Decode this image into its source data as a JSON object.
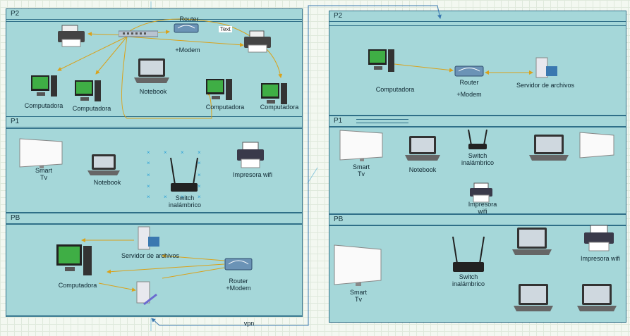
{
  "left": {
    "p2": {
      "title": "P2",
      "labels": {
        "router": "Router",
        "router2": "+Modem",
        "notebook": "Notebook",
        "comp1": "Computadora",
        "comp2": "Computadora",
        "comp3": "Computadora",
        "comp4": "Computadora",
        "text": "Text"
      }
    },
    "p1": {
      "title": "P1",
      "labels": {
        "smart1": "Smart",
        "smart2": "Tv",
        "notebook": "Notebook",
        "switch1": "Switch",
        "switch2": "inalámbrico",
        "printer": "Impresora wifi"
      }
    },
    "pb": {
      "title": "PB",
      "labels": {
        "server": "Servidor de archivos",
        "comp": "Computadora",
        "router": "Router",
        "router2": "+Modem"
      }
    }
  },
  "right": {
    "p2": {
      "title": "P2",
      "labels": {
        "comp": "Computadora",
        "router": "Router",
        "router2": "+Modem",
        "server": "Servidor de archivos"
      }
    },
    "p1": {
      "title": "P1",
      "labels": {
        "smart1": "Smart",
        "smart2": "Tv",
        "notebook": "Notebook",
        "switch1": "Switch",
        "switch2": "inalámbrico",
        "printer1": "Impresora",
        "printer2": "wifi"
      }
    },
    "pb": {
      "title": "PB",
      "labels": {
        "smart1": "Smart",
        "smart2": "Tv",
        "switch1": "Switch",
        "switch2": "inalámbrico",
        "printer": "Impresora wifi"
      }
    }
  },
  "vpn_label": "vpn",
  "colors": {
    "panel": "#a5d7d9",
    "border": "#2f6f88",
    "wire": "#d9a21b",
    "link": "#3a78b0"
  }
}
